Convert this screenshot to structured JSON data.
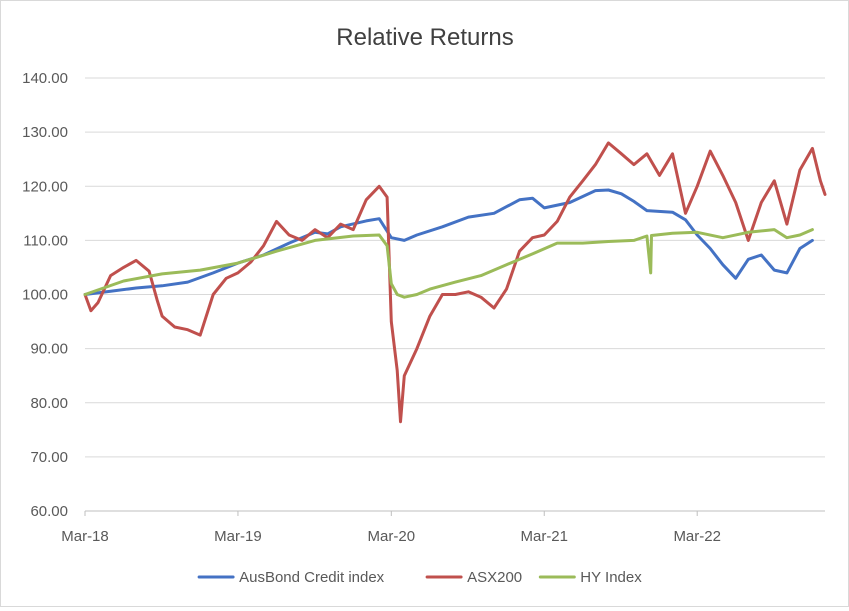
{
  "chart_data": {
    "type": "line",
    "title": "Relative Returns",
    "xlabel": "",
    "ylabel": "",
    "ylim": [
      60,
      140
    ],
    "y_ticks": [
      "60.00",
      "70.00",
      "80.00",
      "90.00",
      "100.00",
      "110.00",
      "120.00",
      "130.00",
      "140.00"
    ],
    "xlim": [
      "2018-03",
      "2022-12"
    ],
    "x_ticks": [
      {
        "label": "Mar-18",
        "x": "2018-03"
      },
      {
        "label": "Mar-19",
        "x": "2019-03"
      },
      {
        "label": "Mar-20",
        "x": "2020-03"
      },
      {
        "label": "Mar-21",
        "x": "2021-03"
      },
      {
        "label": "Mar-22",
        "x": "2022-03"
      }
    ],
    "grid": "horizontal",
    "legend": "bottom",
    "series": [
      {
        "name": "AusBond Credit index",
        "color": "#4472C4",
        "points": [
          [
            "2018-03",
            100
          ],
          [
            "2018-05",
            100.6
          ],
          [
            "2018-07",
            101.2
          ],
          [
            "2018-09",
            101.6
          ],
          [
            "2018-11",
            102.3
          ],
          [
            "2019-01",
            104
          ],
          [
            "2019-03",
            105.8
          ],
          [
            "2019-05",
            107.3
          ],
          [
            "2019-07",
            109.5
          ],
          [
            "2019-09",
            111.5
          ],
          [
            "2019-10",
            111.2
          ],
          [
            "2019-11",
            112.5
          ],
          [
            "2020-01",
            113.6
          ],
          [
            "2020-02",
            114
          ],
          [
            "2020-03",
            110.5
          ],
          [
            "2020-04",
            110
          ],
          [
            "2020-05",
            111
          ],
          [
            "2020-07",
            112.5
          ],
          [
            "2020-09",
            114.3
          ],
          [
            "2020-11",
            115
          ],
          [
            "2021-01",
            117.5
          ],
          [
            "2021-02",
            117.8
          ],
          [
            "2021-03",
            116
          ],
          [
            "2021-05",
            117
          ],
          [
            "2021-07",
            119.2
          ],
          [
            "2021-08",
            119.3
          ],
          [
            "2021-09",
            118.6
          ],
          [
            "2021-10",
            117.2
          ],
          [
            "2021-11",
            115.5
          ],
          [
            "2022-01",
            115.2
          ],
          [
            "2022-02",
            113.8
          ],
          [
            "2022-03",
            111
          ],
          [
            "2022-04",
            108.5
          ],
          [
            "2022-05",
            105.5
          ],
          [
            "2022-06",
            103
          ],
          [
            "2022-07",
            106.5
          ],
          [
            "2022-08",
            107.3
          ],
          [
            "2022-09",
            104.5
          ],
          [
            "2022-10",
            104
          ],
          [
            "2022-11",
            108.5
          ],
          [
            "2022-12",
            110
          ]
        ]
      },
      {
        "name": "ASX200",
        "color": "#C0504D",
        "points": [
          [
            "2018-03",
            100
          ],
          [
            "2018-03-15",
            97
          ],
          [
            "2018-04",
            98.5
          ],
          [
            "2018-05",
            103.5
          ],
          [
            "2018-06",
            105
          ],
          [
            "2018-07",
            106.3
          ],
          [
            "2018-08",
            104.3
          ],
          [
            "2018-08-20",
            99
          ],
          [
            "2018-09",
            96
          ],
          [
            "2018-10",
            94
          ],
          [
            "2018-11",
            93.5
          ],
          [
            "2018-12",
            92.5
          ],
          [
            "2019-01",
            100
          ],
          [
            "2019-02",
            103
          ],
          [
            "2019-03",
            104
          ],
          [
            "2019-04",
            106
          ],
          [
            "2019-05",
            109
          ],
          [
            "2019-06",
            113.5
          ],
          [
            "2019-07",
            111
          ],
          [
            "2019-08",
            110
          ],
          [
            "2019-09",
            112
          ],
          [
            "2019-10",
            110.5
          ],
          [
            "2019-11",
            113
          ],
          [
            "2019-12",
            112
          ],
          [
            "2020-01",
            117.5
          ],
          [
            "2020-02",
            120
          ],
          [
            "2020-02-20",
            118
          ],
          [
            "2020-03",
            95
          ],
          [
            "2020-03-15",
            86
          ],
          [
            "2020-03-23",
            76.5
          ],
          [
            "2020-04",
            85
          ],
          [
            "2020-05",
            90
          ],
          [
            "2020-06",
            96
          ],
          [
            "2020-07",
            100
          ],
          [
            "2020-08",
            100
          ],
          [
            "2020-09",
            100.5
          ],
          [
            "2020-10",
            99.5
          ],
          [
            "2020-11",
            97.5
          ],
          [
            "2020-12",
            101
          ],
          [
            "2021-01",
            108
          ],
          [
            "2021-02",
            110.5
          ],
          [
            "2021-03",
            111
          ],
          [
            "2021-04",
            113.5
          ],
          [
            "2021-05",
            118
          ],
          [
            "2021-06",
            121
          ],
          [
            "2021-07",
            124
          ],
          [
            "2021-08",
            128
          ],
          [
            "2021-09",
            126
          ],
          [
            "2021-10",
            124
          ],
          [
            "2021-11",
            126
          ],
          [
            "2021-12",
            122
          ],
          [
            "2022-01",
            126
          ],
          [
            "2022-02",
            115
          ],
          [
            "2022-03",
            120
          ],
          [
            "2022-04",
            126.5
          ],
          [
            "2022-05",
            122
          ],
          [
            "2022-06",
            117
          ],
          [
            "2022-07",
            110
          ],
          [
            "2022-08",
            117
          ],
          [
            "2022-09",
            121
          ],
          [
            "2022-10",
            113
          ],
          [
            "2022-11",
            123
          ],
          [
            "2022-12",
            127
          ],
          [
            "2022-12-20",
            121
          ],
          [
            "2022-12-31",
            118.5
          ]
        ]
      },
      {
        "name": "HY Index",
        "color": "#9BBB59",
        "points": [
          [
            "2018-03",
            100
          ],
          [
            "2018-06",
            102.5
          ],
          [
            "2018-09",
            103.8
          ],
          [
            "2018-12",
            104.5
          ],
          [
            "2019-03",
            105.8
          ],
          [
            "2019-06",
            108
          ],
          [
            "2019-09",
            110
          ],
          [
            "2019-12",
            110.8
          ],
          [
            "2020-02",
            111
          ],
          [
            "2020-02-20",
            109
          ],
          [
            "2020-03",
            102
          ],
          [
            "2020-03-15",
            100
          ],
          [
            "2020-04",
            99.5
          ],
          [
            "2020-05",
            100
          ],
          [
            "2020-06",
            101
          ],
          [
            "2020-08",
            102.3
          ],
          [
            "2020-10",
            103.5
          ],
          [
            "2020-12",
            105.5
          ],
          [
            "2021-02",
            107.5
          ],
          [
            "2021-04",
            109.5
          ],
          [
            "2021-06",
            109.5
          ],
          [
            "2021-08",
            109.8
          ],
          [
            "2021-10",
            110
          ],
          [
            "2021-11",
            110.8
          ],
          [
            "2021-11-10",
            104
          ],
          [
            "2021-11-12",
            110.9
          ],
          [
            "2022-01",
            111.3
          ],
          [
            "2022-03",
            111.5
          ],
          [
            "2022-05",
            110.5
          ],
          [
            "2022-07",
            111.5
          ],
          [
            "2022-09",
            112
          ],
          [
            "2022-10",
            110.5
          ],
          [
            "2022-11",
            111
          ],
          [
            "2022-12",
            112
          ]
        ]
      }
    ]
  }
}
